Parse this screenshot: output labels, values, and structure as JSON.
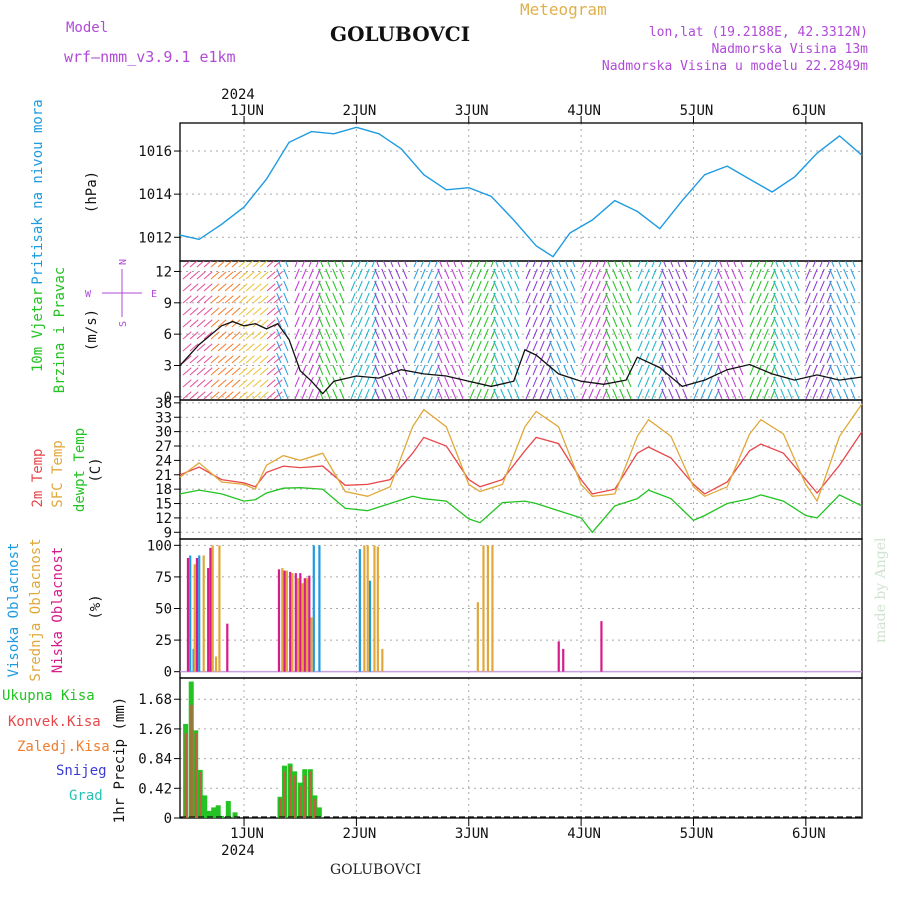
{
  "header": {
    "model_label": "Model",
    "model_name": "wrf–nmm_v3.9.1  e1km",
    "station": "GOLUBOVCI",
    "meteogram_label": "Meteogram",
    "lonlat": "lon,lat (19.2188E, 42.3312N)",
    "elevation": "Nadmorska Visina 13m",
    "model_elevation": "Nadmorska Visina u modelu 22.2849m",
    "footer_station": "GOLUBOVCI",
    "watermark": "made by Angel"
  },
  "colors": {
    "pressure": "#1e9be0",
    "wind_title": "#22c322",
    "temp2m": "#e8474b",
    "sfc_temp": "#e0a83a",
    "dewpt": "#22c322",
    "high_cloud": "#1e9be0",
    "mid_cloud": "#e0a83a",
    "low_cloud": "#d81b8a",
    "total_precip": "#22c322",
    "conv_precip": "#e8474b",
    "frozen": "#f07d30",
    "snow": "#3b3bd6",
    "hail": "#27c3b0",
    "compass": "#b14ad8"
  },
  "x_axis": {
    "year": "2024",
    "day_labels": [
      "1JUN",
      "2JUN",
      "3JUN",
      "4JUN",
      "5JUN",
      "6JUN"
    ],
    "x_range_days": [
      0.43,
      6.5
    ]
  },
  "compass": {
    "north": "N",
    "west": "W",
    "east": "E",
    "south": "S"
  },
  "chart_data": [
    {
      "type": "line",
      "panel": "pressure",
      "ylabel": [
        "Pritisak na nivou mora",
        "(hPa)"
      ],
      "yticks": [
        1012,
        1014,
        1016
      ],
      "ylim": [
        1010.9,
        1017.3
      ],
      "x": [
        0.43,
        0.6,
        0.8,
        1.0,
        1.2,
        1.4,
        1.6,
        1.8,
        2.0,
        2.2,
        2.4,
        2.6,
        2.8,
        3.0,
        3.2,
        3.4,
        3.6,
        3.75,
        3.9,
        4.1,
        4.3,
        4.5,
        4.7,
        4.9,
        5.1,
        5.3,
        5.5,
        5.7,
        5.9,
        6.1,
        6.3,
        6.5
      ],
      "series": [
        {
          "values": [
            1012.1,
            1011.9,
            1012.6,
            1013.4,
            1014.7,
            1016.4,
            1016.9,
            1016.8,
            1017.1,
            1016.8,
            1016.1,
            1014.9,
            1014.2,
            1014.3,
            1013.9,
            1012.8,
            1011.6,
            1011.1,
            1012.2,
            1012.8,
            1013.7,
            1013.2,
            1012.4,
            1013.7,
            1014.9,
            1015.3,
            1014.7,
            1014.1,
            1014.8,
            1015.9,
            1016.7,
            1015.8
          ]
        }
      ]
    },
    {
      "type": "line",
      "panel": "wind",
      "ylabel": [
        "10m Vjetar",
        "Brzina i Pravac",
        "(m/s)"
      ],
      "yticks": [
        0,
        3,
        6,
        9,
        12
      ],
      "ylim": [
        -0.3,
        13
      ],
      "x": [
        0.43,
        0.6,
        0.8,
        0.9,
        1.0,
        1.1,
        1.2,
        1.3,
        1.4,
        1.5,
        1.6,
        1.7,
        1.8,
        2.0,
        2.2,
        2.4,
        2.6,
        2.8,
        3.0,
        3.2,
        3.4,
        3.5,
        3.6,
        3.8,
        4.0,
        4.2,
        4.4,
        4.5,
        4.7,
        4.9,
        5.1,
        5.3,
        5.5,
        5.7,
        5.9,
        6.1,
        6.3,
        6.5
      ],
      "series": [
        {
          "values": [
            3,
            5,
            6.8,
            7.2,
            6.8,
            7,
            6.5,
            7,
            5.5,
            2.5,
            1.5,
            0.3,
            1.5,
            2,
            1.8,
            2.6,
            2.2,
            2,
            1.5,
            1,
            1.5,
            4.5,
            4,
            2.2,
            1.5,
            1.2,
            1.6,
            3.8,
            2.8,
            1,
            1.6,
            2.6,
            3.1,
            2.2,
            1.6,
            2.1,
            1.6,
            1.9
          ]
        }
      ]
    },
    {
      "type": "line",
      "panel": "temperature",
      "ylabel": [
        "2m Temp",
        "SFC Temp",
        "dewpt Temp",
        "(C)"
      ],
      "yticks": [
        9,
        12,
        15,
        18,
        21,
        24,
        27,
        30,
        33,
        36
      ],
      "ylim": [
        7.6,
        36.6
      ],
      "x": [
        0.43,
        0.6,
        0.8,
        1.0,
        1.1,
        1.2,
        1.35,
        1.5,
        1.7,
        1.9,
        2.1,
        2.3,
        2.5,
        2.6,
        2.8,
        3.0,
        3.1,
        3.3,
        3.5,
        3.6,
        3.8,
        4.0,
        4.1,
        4.3,
        4.5,
        4.6,
        4.8,
        5.0,
        5.1,
        5.3,
        5.5,
        5.6,
        5.8,
        6.0,
        6.1,
        6.3,
        6.5
      ],
      "series": [
        {
          "name": "2m Temp",
          "values": [
            21,
            22.6,
            20,
            19.3,
            18.5,
            21.5,
            22.8,
            22.5,
            22.8,
            18.8,
            19,
            20,
            25.5,
            28.8,
            27,
            20,
            18.5,
            20,
            26,
            28.8,
            27.5,
            20,
            17,
            18,
            25.5,
            26.8,
            24.5,
            19,
            17,
            19.5,
            26,
            27.4,
            25.5,
            20,
            17.2,
            23,
            30
          ]
        },
        {
          "name": "SFC Temp",
          "values": [
            20.5,
            23.5,
            19.5,
            19,
            18,
            23,
            25,
            24,
            25.5,
            17.5,
            16.5,
            18.5,
            31,
            34.6,
            31,
            19,
            17.5,
            19,
            31,
            34.2,
            31,
            19,
            16.5,
            17,
            29,
            32.5,
            29,
            18.5,
            16.5,
            18.5,
            29.5,
            32.5,
            29.5,
            19,
            15.5,
            29,
            35.8
          ]
        },
        {
          "name": "dewpt Temp",
          "values": [
            17,
            17.8,
            17,
            15.5,
            15.8,
            17.2,
            18.2,
            18.3,
            18,
            14,
            13.5,
            15,
            16.5,
            16,
            15.5,
            11.8,
            11,
            15.2,
            15.5,
            15,
            13.5,
            12,
            9,
            14.5,
            16,
            17.8,
            16,
            11.5,
            12.5,
            15,
            16,
            16.8,
            15.5,
            12.5,
            12,
            16.8,
            14.5
          ]
        }
      ]
    },
    {
      "type": "bar",
      "panel": "clouds",
      "ylabel": [
        "Visoka Oblacnost",
        "Srednja Oblacnost",
        "Niska Oblacnost",
        "(%)"
      ],
      "yticks": [
        0,
        25,
        50,
        75,
        100
      ],
      "ylim": [
        -5,
        105
      ],
      "series": [
        {
          "name": "Visoka Oblacnost",
          "x": [
            0.52,
            0.55,
            0.6,
            1.62,
            1.67,
            2.03,
            2.12
          ],
          "values": [
            92,
            18,
            92,
            100,
            100,
            97,
            72
          ]
        },
        {
          "name": "Srednja Oblacnost",
          "x": [
            0.56,
            0.64,
            0.72,
            0.75,
            0.78,
            1.34,
            1.38,
            1.43,
            1.48,
            1.52,
            1.56,
            1.6,
            2.07,
            2.1,
            2.16,
            2.19,
            2.23,
            3.08,
            3.13,
            3.17,
            3.21
          ],
          "values": [
            85,
            92,
            100,
            12,
            100,
            82,
            80,
            78,
            74,
            70,
            74,
            43,
            100,
            100,
            100,
            99,
            18,
            55,
            100,
            100,
            100
          ]
        },
        {
          "name": "Niska Oblacnost",
          "x": [
            0.5,
            0.58,
            0.68,
            0.7,
            0.85,
            1.31,
            1.36,
            1.41,
            1.46,
            1.5,
            1.54,
            1.58,
            3.8,
            3.84,
            4.18
          ],
          "values": [
            90,
            90,
            82,
            98,
            38,
            81,
            80,
            79,
            78,
            78,
            74,
            76,
            24,
            18,
            40
          ]
        }
      ]
    },
    {
      "type": "bar",
      "panel": "precip",
      "ylabel": [
        "Ukupna Kisa",
        "Konvek.Kisa",
        "Zaledj.Kisa",
        "Snijeg",
        "Grad",
        "1hr Precip (mm)"
      ],
      "yticks": [
        0,
        0.42,
        0.84,
        1.26,
        1.68
      ],
      "ylim": [
        0,
        1.98
      ],
      "x": [
        0.48,
        0.53,
        0.57,
        0.61,
        0.65,
        0.69,
        0.73,
        0.77,
        0.8,
        0.86,
        0.92,
        1.32,
        1.36,
        1.41,
        1.45,
        1.5,
        1.54,
        1.59,
        1.63,
        1.67
      ],
      "series": [
        {
          "name": "Ukupna Kisa",
          "values": [
            1.33,
            1.93,
            1.24,
            0.68,
            0.32,
            0.1,
            0.15,
            0.18,
            0.03,
            0.24,
            0.08,
            0.3,
            0.74,
            0.77,
            0.66,
            0.5,
            0.69,
            0.69,
            0.32,
            0.15
          ]
        },
        {
          "name": "Konvek.Kisa",
          "values": [
            1.2,
            1.6,
            1.2,
            0.65,
            0.0,
            0.0,
            0.0,
            0.0,
            0.0,
            0.0,
            0.0,
            0.28,
            0.66,
            0.73,
            0.6,
            0.45,
            0.6,
            0.66,
            0.27,
            0.0
          ]
        }
      ]
    }
  ]
}
